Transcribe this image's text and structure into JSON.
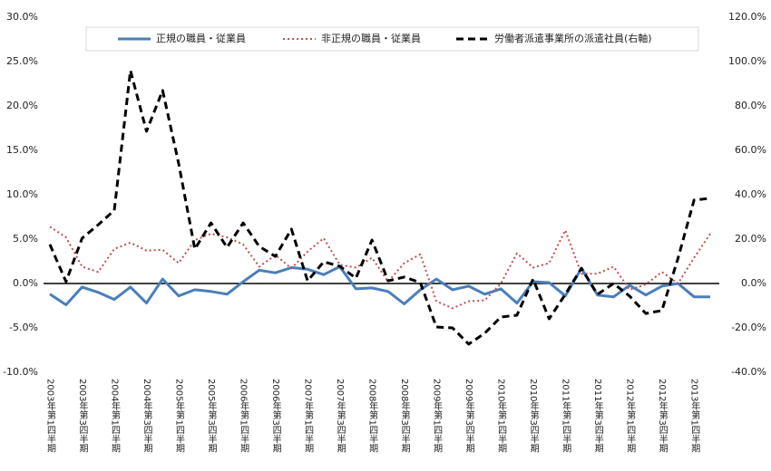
{
  "chart_data": {
    "type": "line",
    "categories": [
      "2003年第1四半期",
      null,
      "2003年第3四半期",
      null,
      "2004年第1四半期",
      null,
      "2004年第3四半期",
      null,
      "2005年第1四半期",
      null,
      "2005年第3四半期",
      null,
      "2006年第1四半期",
      null,
      "2006年第3四半期",
      null,
      "2007年第1四半期",
      null,
      "2007年第3四半期",
      null,
      "2008年第1四半期",
      null,
      "2008年第3四半期",
      null,
      "2009年第1四半期",
      null,
      "2009年第3四半期",
      null,
      "2010年第1四半期",
      null,
      "2010年第3四半期",
      null,
      "2011年第1四半期",
      null,
      "2011年第3四半期",
      null,
      "2012年第1四半期",
      null,
      "2012年第3四半期",
      null,
      "2013年第1四半期",
      null
    ],
    "series": [
      {
        "name": "正規の職員・従業員",
        "color": "#4a7ebb",
        "axis": "y",
        "values": [
          -1.2,
          -2.4,
          -0.4,
          -1.0,
          -1.8,
          -0.4,
          -2.2,
          0.5,
          -1.4,
          -0.7,
          -0.9,
          -1.2,
          0.2,
          1.5,
          1.2,
          1.8,
          1.6,
          1.0,
          1.9,
          -0.6,
          -0.5,
          -0.9,
          -2.3,
          -0.7,
          0.5,
          -0.7,
          -0.3,
          -1.2,
          -0.6,
          -2.2,
          0.2,
          0.1,
          -1.4,
          1.7,
          -1.3,
          -1.5,
          -0.2,
          -1.3,
          -0.3,
          0,
          -1.5,
          -1.5
        ]
      },
      {
        "name": "非正規の職員・従業員",
        "color": "#c0504d",
        "axis": "y",
        "values": [
          6.4,
          5.2,
          1.9,
          1.3,
          3.9,
          4.6,
          3.7,
          3.8,
          2.3,
          4.9,
          5.6,
          5.2,
          4.4,
          1.9,
          3.2,
          1.7,
          3.6,
          5.1,
          2.1,
          1.8,
          2.9,
          0.2,
          2.3,
          3.3,
          -2.0,
          -2.8,
          -2.0,
          -1.9,
          0,
          3.4,
          1.8,
          2.3,
          6.0,
          1.1,
          1.1,
          1.9,
          -0.7,
          -0.1,
          1.3,
          0,
          2.9,
          5.6
        ]
      },
      {
        "name": "労働者派遣事業所の派遣社員(右軸)",
        "color": "#000000",
        "axis": "y2",
        "values": [
          17.6,
          0.8,
          20.4,
          26.5,
          33,
          96,
          68.6,
          87,
          54,
          15.5,
          27.3,
          16.3,
          27.3,
          16.7,
          12.2,
          24.5,
          1.2,
          9.8,
          7.8,
          2.4,
          19.6,
          1.2,
          2.9,
          0.4,
          -19.6,
          -20,
          -27.3,
          -22.4,
          -15.1,
          -14.3,
          2,
          -15.9,
          -4.9,
          6.9,
          -4.9,
          0,
          -5.7,
          -13.5,
          -12.2,
          11.4,
          37.6,
          38.4
        ]
      }
    ],
    "ylim": [
      -10,
      30
    ],
    "yticks": [
      {
        "value": -10,
        "label": "-10.0%"
      },
      {
        "value": -5,
        "label": "-5.0%"
      },
      {
        "value": 0,
        "label": "0.0%"
      },
      {
        "value": 5,
        "label": "5.0%"
      },
      {
        "value": 10,
        "label": "10.0%"
      },
      {
        "value": 15,
        "label": "15.0%"
      },
      {
        "value": 20,
        "label": "20.0%"
      },
      {
        "value": 25,
        "label": "25.0%"
      },
      {
        "value": 30,
        "label": "30.0%"
      }
    ],
    "y2lim": [
      -40,
      120
    ],
    "y2ticks": [
      {
        "value": -40,
        "label": "-40.0%"
      },
      {
        "value": -20,
        "label": "-20.0%"
      },
      {
        "value": 0,
        "label": "0.0%"
      },
      {
        "value": 20,
        "label": "20.0%"
      },
      {
        "value": 40,
        "label": "40.0%"
      },
      {
        "value": 60,
        "label": "60.0%"
      },
      {
        "value": 80,
        "label": "80.0%"
      },
      {
        "value": 100,
        "label": "100.0%"
      },
      {
        "value": 120,
        "label": "120.0%"
      }
    ],
    "grid": false,
    "legend": "top"
  }
}
